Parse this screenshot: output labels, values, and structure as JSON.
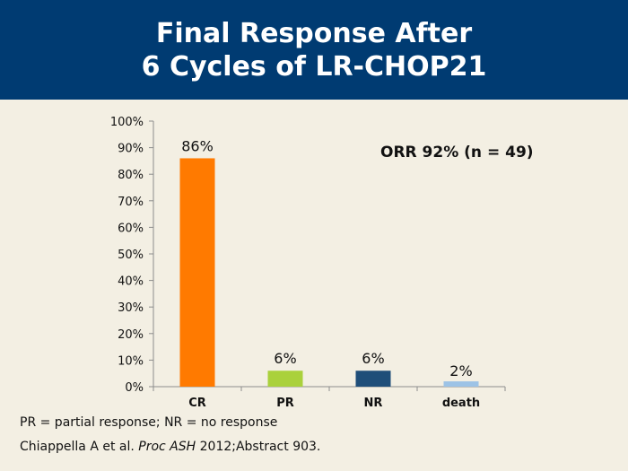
{
  "header": {
    "title_line1": "Final Response After",
    "title_line2": "6 Cycles of LR-CHOP21"
  },
  "annotation": "ORR 92% (n = 49)",
  "footnote": "PR = partial response; NR = no response",
  "citation": {
    "author": "Chiappella A et al.",
    "journal": "Proc ASH",
    "rest": "2012;Abstract 903."
  },
  "chart_data": {
    "type": "bar",
    "categories": [
      "CR",
      "PR",
      "NR",
      "death"
    ],
    "values": [
      86,
      6,
      6,
      2
    ],
    "data_labels": [
      "86%",
      "6%",
      "6%",
      "2%"
    ],
    "colors": [
      "#ff7a00",
      "#aad13c",
      "#1f4e79",
      "#9dc3e6"
    ],
    "ylim": [
      0,
      100
    ],
    "yticks": [
      "0%",
      "10%",
      "20%",
      "30%",
      "40%",
      "50%",
      "60%",
      "70%",
      "80%",
      "90%",
      "100%"
    ],
    "grid": false,
    "legend": "none"
  }
}
